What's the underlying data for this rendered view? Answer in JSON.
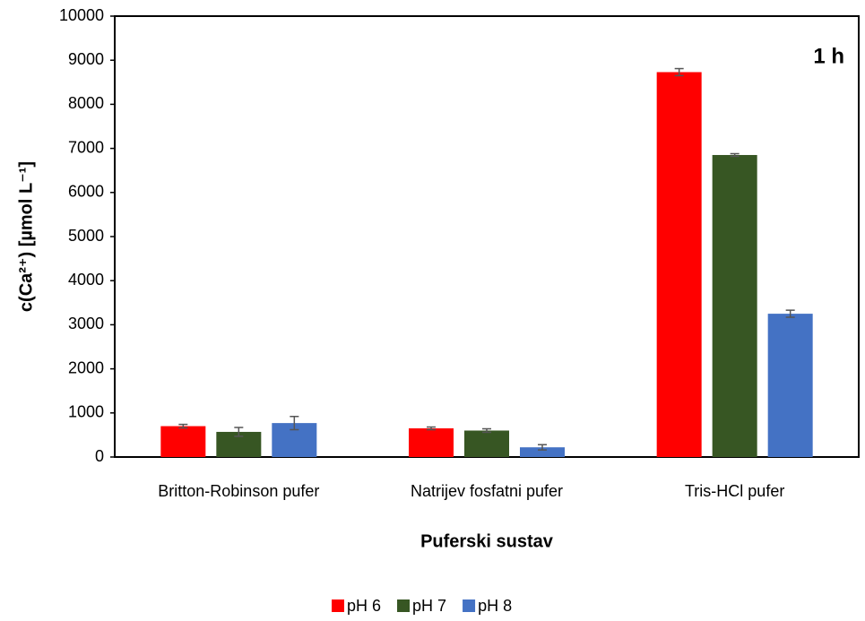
{
  "chart_data": {
    "type": "bar",
    "annotation": "1 h",
    "x_label": "Puferski sustav",
    "y_label": "c(Ca²⁺) [µmol L⁻¹]",
    "categories": [
      "Britton-Robinson pufer",
      "Natrijev fosfatni pufer",
      "Tris-HCl pufer"
    ],
    "series": [
      {
        "name": "pH 6",
        "color": "#ff0000",
        "values": [
          700,
          650,
          8730
        ],
        "errors": [
          40,
          30,
          80
        ]
      },
      {
        "name": "pH 7",
        "color": "#375623",
        "values": [
          570,
          600,
          6850
        ],
        "errors": [
          100,
          40,
          30
        ]
      },
      {
        "name": "pH 8",
        "color": "#4472c4",
        "values": [
          770,
          220,
          3250
        ],
        "errors": [
          150,
          60,
          80
        ]
      }
    ],
    "ylim": [
      0,
      10000
    ],
    "yticks": [
      0,
      1000,
      2000,
      3000,
      4000,
      5000,
      6000,
      7000,
      8000,
      9000,
      10000
    ],
    "legend": "bottom"
  }
}
